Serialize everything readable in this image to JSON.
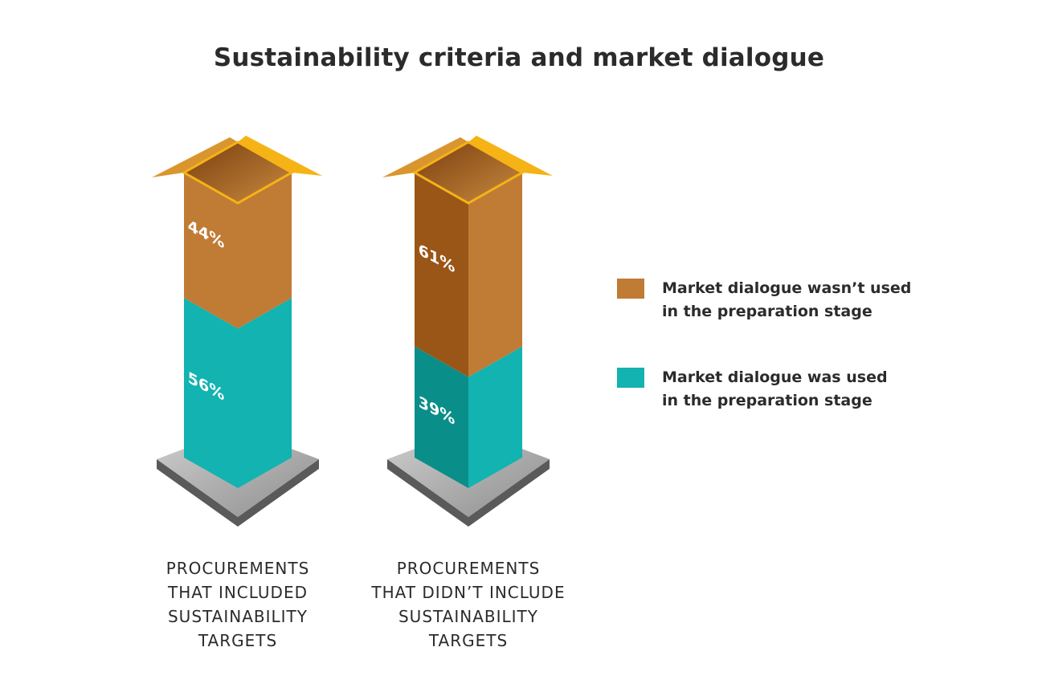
{
  "chart_data": {
    "type": "bar",
    "stacked": true,
    "title": "Sustainability criteria and market dialogue",
    "categories": [
      [
        "PROCUREMENTS",
        "THAT INCLUDED",
        "SUSTAINABILITY",
        "TARGETS"
      ],
      [
        "PROCUREMENTS",
        "THAT DIDN’T INCLUDE",
        "SUSTAINABILITY",
        "TARGETS"
      ]
    ],
    "series": [
      {
        "name": [
          "Market dialogue was used",
          "in the preparation stage"
        ],
        "values": [
          56,
          39
        ],
        "labels": [
          "56%",
          "39%"
        ],
        "color": "#12B3B0"
      },
      {
        "name": [
          "Market dialogue wasn’t used",
          "in the preparation stage"
        ],
        "values": [
          44,
          61
        ],
        "labels": [
          "44%",
          "61%"
        ],
        "color": "#C07B35"
      }
    ],
    "ylim": [
      0,
      100
    ],
    "legend_position": "right"
  },
  "colors": {
    "teal": "#12B3B0",
    "teal_dark": "#0A8E89",
    "brown": "#C07B35",
    "brown_dark": "#9A5617",
    "accent_yellow": "#F5B316",
    "pedestal": "#BDBDBD"
  }
}
